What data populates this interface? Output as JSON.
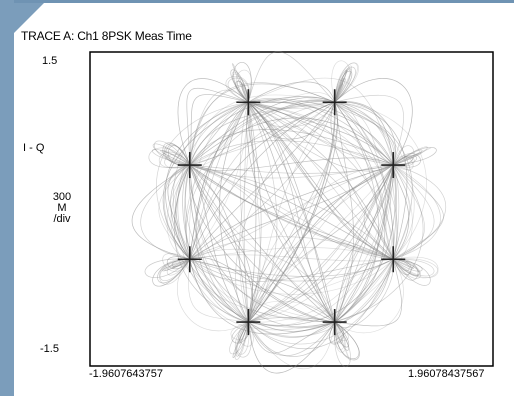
{
  "chart_data": {
    "type": "scatter",
    "title": "TRACE A: Ch1 8PSK Meas Time",
    "ylabel": "I - Q",
    "y_scale_label": [
      "300",
      "M",
      "/div"
    ],
    "ylim": [
      -1.5,
      1.5
    ],
    "xlim": [
      -1.9607643757,
      1.96078437567
    ],
    "y_tick_labels": [
      "1.5",
      "-1.5"
    ],
    "x_tick_labels": [
      "-1.9607643757",
      "1.96078437567"
    ],
    "grid": false,
    "constellation_points": [
      {
        "x": -0.42,
        "y": 1.02
      },
      {
        "x": 0.42,
        "y": 1.02
      },
      {
        "x": -0.99,
        "y": 0.42
      },
      {
        "x": 0.99,
        "y": 0.42
      },
      {
        "x": -0.99,
        "y": -0.48
      },
      {
        "x": 0.99,
        "y": -0.48
      },
      {
        "x": -0.42,
        "y": -1.08
      },
      {
        "x": 0.42,
        "y": -1.08
      }
    ],
    "trace_color": "#8a8a8a",
    "marker_color": "#222222"
  }
}
